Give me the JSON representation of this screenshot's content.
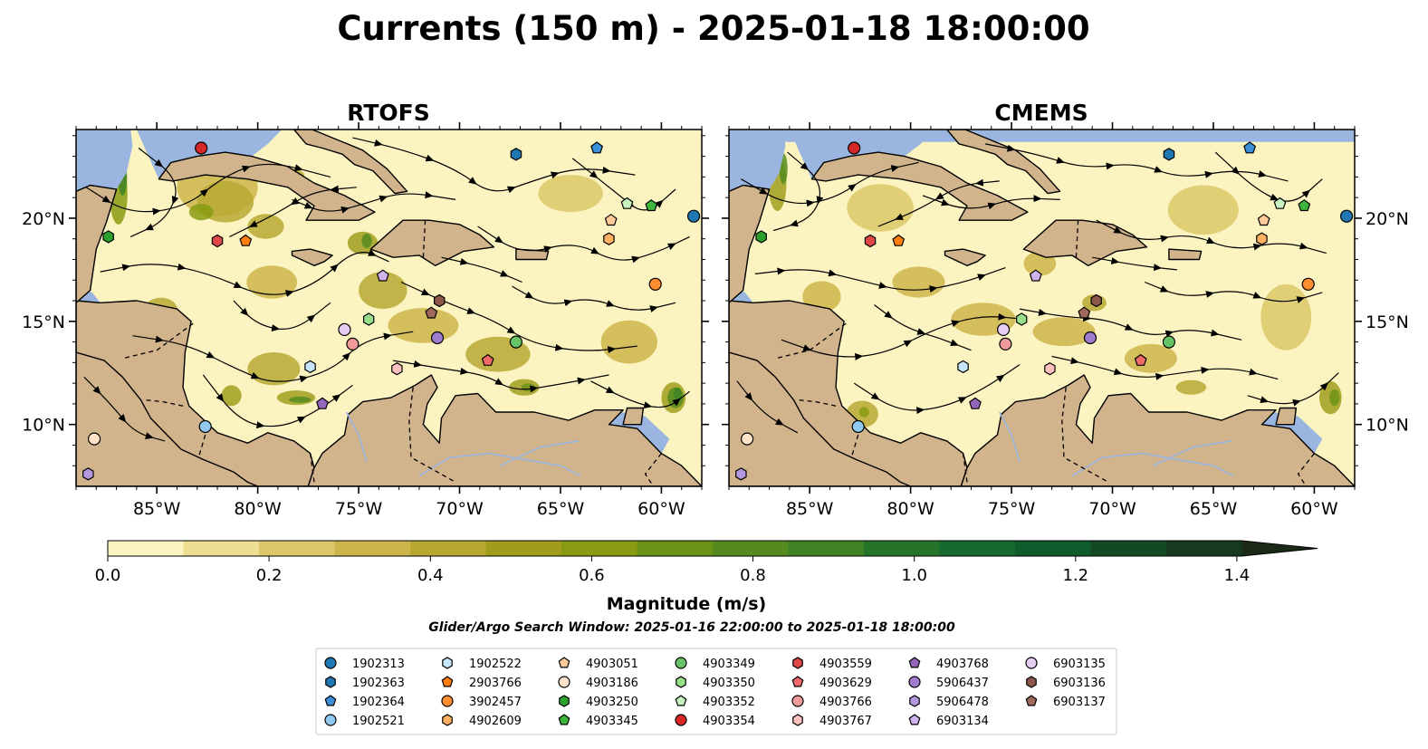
{
  "title": "Currents (150 m) - 2025-01-18 18:00:00",
  "panels": [
    {
      "title": "RTOFS"
    },
    {
      "title": "CMEMS"
    }
  ],
  "axes": {
    "x_ticks": [
      "85°W",
      "80°W",
      "75°W",
      "70°W",
      "65°W",
      "60°W"
    ],
    "x_values": [
      -85,
      -80,
      -75,
      -70,
      -65,
      -60
    ],
    "y_ticks": [
      "20°N",
      "15°N",
      "10°N"
    ],
    "y_values": [
      20,
      15,
      10
    ],
    "lon_range": [
      -89,
      -58
    ],
    "lat_range": [
      7,
      24.3
    ]
  },
  "colorbar": {
    "label": "Magnitude (m/s)",
    "ticks": [
      "0.0",
      "0.2",
      "0.4",
      "0.6",
      "0.8",
      "1.0",
      "1.2",
      "1.4"
    ],
    "tick_values": [
      0,
      0.2,
      0.4,
      0.6,
      0.8,
      1.0,
      1.2,
      1.4
    ],
    "range": [
      0,
      1.5
    ],
    "extend": "max",
    "colors": [
      "#fbf4c0",
      "#eddf92",
      "#dcc868",
      "#ccb54a",
      "#b7a832",
      "#a09d1e",
      "#889b12",
      "#6d9218",
      "#558b1e",
      "#3e8224",
      "#26742a",
      "#156a30",
      "#0f5b2c",
      "#134a24",
      "#173a1e",
      "#1b2a16"
    ]
  },
  "search_window": "Glider/Argo Search Window: 2025-01-16 22:00:00 to 2025-01-18 18:00:00",
  "colors": {
    "land": "#d2b48c",
    "water": "#9ab6e0",
    "rivers": "#9ab6e0"
  },
  "floats": [
    {
      "id": "1902313",
      "color": "#1f77b4",
      "marker": "circle",
      "rtofs": [
        -58.4,
        20.1
      ],
      "cmems": [
        -58.4,
        20.1
      ]
    },
    {
      "id": "1902363",
      "color": "#1f77b4",
      "marker": "hexagon",
      "rtofs": [
        -67.2,
        23.1
      ],
      "cmems": [
        -67.2,
        23.1
      ]
    },
    {
      "id": "1902364",
      "color": "#3a8fd6",
      "marker": "pentagon",
      "rtofs": [
        -63.2,
        23.4
      ],
      "cmems": [
        -63.2,
        23.4
      ]
    },
    {
      "id": "1902521",
      "color": "#90c8f0",
      "marker": "circle",
      "rtofs": [
        -82.6,
        9.9
      ],
      "cmems": [
        -82.6,
        9.9
      ]
    },
    {
      "id": "1902522",
      "color": "#c6e6fa",
      "marker": "hexagon",
      "rtofs": [
        -77.4,
        12.8
      ],
      "cmems": [
        -77.4,
        12.8
      ]
    },
    {
      "id": "2903766",
      "color": "#ff7f0e",
      "marker": "pentagon",
      "rtofs": [
        -80.6,
        18.9
      ],
      "cmems": [
        -80.6,
        18.9
      ]
    },
    {
      "id": "3902457",
      "color": "#ff8c2e",
      "marker": "circle",
      "rtofs": [
        -60.3,
        16.8
      ],
      "cmems": [
        -60.3,
        16.8
      ]
    },
    {
      "id": "4902609",
      "color": "#ffb060",
      "marker": "hexagon",
      "rtofs": [
        -62.6,
        19.0
      ],
      "cmems": [
        -62.6,
        19.0
      ]
    },
    {
      "id": "4903051",
      "color": "#ffcc99",
      "marker": "pentagon",
      "rtofs": [
        -62.5,
        19.9
      ],
      "cmems": [
        -62.5,
        19.9
      ]
    },
    {
      "id": "4903186",
      "color": "#ffe3c8",
      "marker": "circle",
      "rtofs": [
        -88.1,
        9.3
      ],
      "cmems": [
        -88.1,
        9.3
      ]
    },
    {
      "id": "4903250",
      "color": "#2ca02c",
      "marker": "hexagon",
      "rtofs": [
        -87.4,
        19.1
      ],
      "cmems": [
        -87.4,
        19.1
      ]
    },
    {
      "id": "4903345",
      "color": "#3cb63c",
      "marker": "pentagon",
      "rtofs": [
        -60.5,
        20.6
      ],
      "cmems": [
        -60.5,
        20.6
      ]
    },
    {
      "id": "4903349",
      "color": "#66c266",
      "marker": "circle",
      "rtofs": [
        -67.2,
        14.0
      ],
      "cmems": [
        -67.2,
        14.0
      ]
    },
    {
      "id": "4903350",
      "color": "#98df8a",
      "marker": "hexagon",
      "rtofs": [
        -74.5,
        15.1
      ],
      "cmems": [
        -74.5,
        15.1
      ]
    },
    {
      "id": "4903352",
      "color": "#c8f2c0",
      "marker": "pentagon",
      "rtofs": [
        -61.7,
        20.7
      ],
      "cmems": [
        -61.7,
        20.7
      ]
    },
    {
      "id": "4903354",
      "color": "#d62728",
      "marker": "circle",
      "rtofs": [
        -82.8,
        23.4
      ],
      "cmems": [
        -82.8,
        23.4
      ]
    },
    {
      "id": "4903559",
      "color": "#e04848",
      "marker": "hexagon",
      "rtofs": [
        -82.0,
        18.9
      ],
      "cmems": [
        -82.0,
        18.9
      ]
    },
    {
      "id": "4903629",
      "color": "#f06a6a",
      "marker": "pentagon",
      "rtofs": [
        -68.6,
        13.1
      ],
      "cmems": [
        -68.6,
        13.1
      ]
    },
    {
      "id": "4903766",
      "color": "#f09a9a",
      "marker": "circle",
      "rtofs": [
        -75.3,
        13.9
      ],
      "cmems": [
        -75.3,
        13.9
      ]
    },
    {
      "id": "4903767",
      "color": "#ffc0c0",
      "marker": "hexagon",
      "rtofs": [
        -73.1,
        12.7
      ],
      "cmems": [
        -73.1,
        12.7
      ]
    },
    {
      "id": "4903768",
      "color": "#9467bd",
      "marker": "pentagon",
      "rtofs": [
        -76.8,
        11.0
      ],
      "cmems": [
        -76.8,
        11.0
      ]
    },
    {
      "id": "5906437",
      "color": "#a07ccf",
      "marker": "circle",
      "rtofs": [
        -71.1,
        14.2
      ],
      "cmems": [
        -71.1,
        14.2
      ]
    },
    {
      "id": "5906478",
      "color": "#b497dc",
      "marker": "hexagon",
      "rtofs": [
        -88.4,
        7.6
      ],
      "cmems": [
        -88.4,
        7.6
      ]
    },
    {
      "id": "6903134",
      "color": "#cfb3ec",
      "marker": "pentagon",
      "rtofs": [
        -73.8,
        17.2
      ],
      "cmems": [
        -73.8,
        17.2
      ]
    },
    {
      "id": "6903135",
      "color": "#e6cdf2",
      "marker": "circle",
      "rtofs": [
        -75.7,
        14.6
      ],
      "cmems": [
        -75.4,
        14.6
      ]
    },
    {
      "id": "6903136",
      "color": "#8c564b",
      "marker": "hexagon",
      "rtofs": [
        -71.0,
        16.0
      ],
      "cmems": [
        -70.8,
        16.0
      ]
    },
    {
      "id": "6903137",
      "color": "#a0695c",
      "marker": "pentagon",
      "rtofs": [
        -71.4,
        15.4
      ],
      "cmems": [
        -71.4,
        15.4
      ]
    }
  ]
}
